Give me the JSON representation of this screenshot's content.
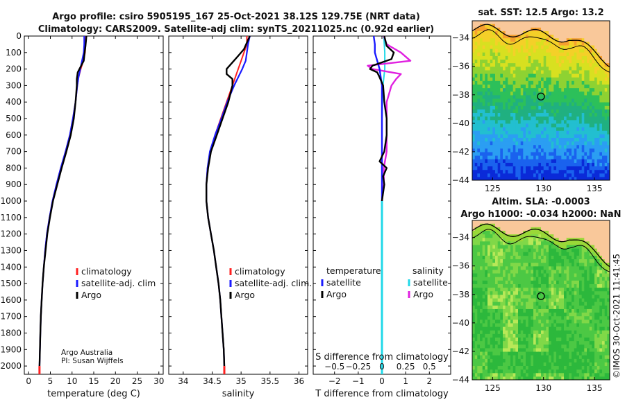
{
  "figure": {
    "title_line1": "Argo profile: csiro 5905195_167 25-Oct-2021 38.12S 129.75E (NRT data)",
    "title_line2": "Climatology: CARS2009. Satellite-adj clim: synTS_20211025.nc (0.92d earlier)",
    "credit_line1": "Argo Australia",
    "credit_line2": "PI: Susan Wijffels",
    "timestamp": "©IMOS 30-Oct-2021 11:41:45"
  },
  "colors": {
    "climatology": "#ff2020",
    "satellite": "#1a1aff",
    "argo": "#000000",
    "argo_salinity_diff": "#e020e0",
    "satellite_salinity_diff": "#20d8e8",
    "land": "#f9c89a"
  },
  "chart_data": [
    {
      "type": "line",
      "id": "temperature",
      "xlabel": "temperature (deg C)",
      "xlim": [
        -1,
        31
      ],
      "xticks": [
        0,
        5,
        10,
        15,
        20,
        25,
        30
      ],
      "ylim": [
        2050,
        0
      ],
      "yticks": [
        0,
        100,
        200,
        300,
        400,
        500,
        600,
        700,
        800,
        900,
        1000,
        1100,
        1200,
        1300,
        1400,
        1500,
        1600,
        1700,
        1800,
        1900,
        2000
      ],
      "legend": [
        "climatology",
        "satellite-adj. clim",
        "Argo"
      ],
      "series": [
        {
          "name": "climatology",
          "depth": [
            0,
            50,
            100,
            150,
            200,
            250,
            300,
            400,
            500,
            600,
            700,
            800,
            900,
            1000,
            1100,
            1200,
            1300,
            1400,
            1500,
            1600,
            1700,
            1800,
            1900,
            2000
          ],
          "values": [
            13.2,
            13.1,
            13.0,
            12.6,
            12.0,
            11.5,
            11.2,
            10.8,
            10.2,
            9.5,
            8.5,
            7.4,
            6.4,
            5.5,
            4.8,
            4.2,
            3.8,
            3.5,
            3.2,
            3.0,
            2.8,
            2.7,
            2.6,
            2.5
          ]
        },
        {
          "name": "satellite-adj. clim",
          "depth": [
            0,
            50,
            100,
            150,
            200,
            250,
            300,
            400,
            500,
            600,
            700,
            800,
            900,
            1000,
            1100,
            1200,
            1300,
            1400,
            1500,
            1600,
            1700,
            1800,
            1900,
            2000
          ],
          "values": [
            12.8,
            12.8,
            12.7,
            12.3,
            11.9,
            11.5,
            11.2,
            10.8,
            10.2,
            9.5,
            8.5,
            7.4,
            6.4,
            5.5,
            4.8,
            4.2,
            3.8,
            3.5,
            3.2,
            3.0,
            2.8,
            2.7,
            2.6,
            2.5
          ]
        },
        {
          "name": "Argo",
          "depth": [
            0,
            30,
            60,
            100,
            150,
            180,
            200,
            220,
            240,
            260,
            300,
            400,
            500,
            600,
            700,
            800,
            900,
            1000,
            1100,
            1200,
            1300,
            1400,
            1500,
            1600,
            1700,
            1800,
            1900,
            2000
          ],
          "values": [
            13.3,
            13.2,
            13.1,
            12.9,
            12.7,
            12.1,
            11.7,
            11.3,
            11.2,
            11.1,
            11.1,
            10.8,
            10.4,
            9.7,
            8.7,
            7.6,
            6.6,
            5.6,
            4.9,
            4.3,
            3.9,
            3.5,
            3.2,
            3.0,
            2.8,
            2.7,
            2.6,
            2.5
          ]
        }
      ]
    },
    {
      "type": "line",
      "id": "salinity",
      "xlabel": "salinity",
      "xlim": [
        33.75,
        36.15
      ],
      "xticks": [
        34,
        34.5,
        35,
        35.5,
        36
      ],
      "ylim": [
        2050,
        0
      ],
      "legend": [
        "climatology",
        "satellite-adj. clim.",
        "Argo"
      ],
      "series": [
        {
          "name": "climatology",
          "depth": [
            0,
            50,
            100,
            150,
            200,
            300,
            400,
            500,
            600,
            700,
            800,
            900,
            1000,
            1100,
            1200,
            1300,
            1400,
            1500,
            1600,
            1700,
            1800,
            1900,
            2000
          ],
          "values": [
            35.1,
            35.1,
            35.05,
            35.0,
            34.95,
            34.85,
            34.75,
            34.65,
            34.55,
            34.47,
            34.42,
            34.4,
            34.4,
            34.43,
            34.48,
            34.53,
            34.57,
            34.61,
            34.64,
            34.66,
            34.68,
            34.7,
            34.71
          ]
        },
        {
          "name": "satellite-adj. clim.",
          "depth": [
            0,
            50,
            100,
            150,
            200,
            300,
            400,
            500,
            600,
            700,
            800,
            900,
            1000,
            1100,
            1200,
            1300,
            1400,
            1500,
            1600,
            1700,
            1800,
            1900,
            2000
          ],
          "values": [
            35.15,
            35.12,
            35.1,
            35.08,
            35.02,
            34.88,
            34.76,
            34.66,
            34.55,
            34.46,
            34.42,
            34.4,
            34.4,
            34.43,
            34.48,
            34.53,
            34.57,
            34.61,
            34.64,
            34.66,
            34.68,
            34.7,
            34.71
          ]
        },
        {
          "name": "Argo",
          "depth": [
            0,
            40,
            80,
            120,
            160,
            200,
            230,
            260,
            300,
            400,
            500,
            600,
            700,
            800,
            900,
            1000,
            1100,
            1200,
            1300,
            1400,
            1500,
            1600,
            1700,
            1800,
            1900,
            2000
          ],
          "values": [
            35.15,
            35.1,
            35.05,
            34.95,
            34.85,
            34.75,
            34.75,
            34.85,
            34.85,
            34.78,
            34.68,
            34.58,
            34.48,
            34.43,
            34.4,
            34.4,
            34.43,
            34.48,
            34.53,
            34.57,
            34.61,
            34.64,
            34.66,
            34.68,
            34.7,
            34.71
          ]
        }
      ]
    },
    {
      "type": "line",
      "id": "difference",
      "xlabel": "T difference from climatology",
      "xlabel_top": "S difference from climatology",
      "xlim": [
        -2.9,
        2.9
      ],
      "xticks": [
        -2,
        -1,
        0,
        1,
        2
      ],
      "xticks_top": [
        -0.5,
        -0.25,
        0,
        0.25,
        0.5
      ],
      "ylim": [
        2050,
        0
      ],
      "legend_left_title": "temperature",
      "legend_right_title": "salinity",
      "legend_left": [
        "satellite",
        "Argo"
      ],
      "legend_right": [
        "satellite",
        "Argo"
      ],
      "series": [
        {
          "name": "T satellite",
          "depth": [
            0,
            50,
            100,
            150,
            200,
            300,
            400,
            600,
            800,
            1000,
            1200,
            1500,
            2000
          ],
          "values": [
            -0.35,
            -0.3,
            -0.3,
            -0.2,
            -0.1,
            0,
            0,
            0,
            0,
            0,
            0,
            0,
            0
          ]
        },
        {
          "name": "T Argo",
          "depth": [
            0,
            30,
            60,
            100,
            140,
            180,
            200,
            220,
            250,
            300,
            400,
            500,
            600,
            700,
            760,
            800,
            850,
            900,
            1000,
            1500,
            2000
          ],
          "values": [
            0.1,
            0.15,
            0.2,
            0.5,
            0.4,
            -0.4,
            -0.5,
            -0.2,
            -0.1,
            0.05,
            0.1,
            0.2,
            0.2,
            0.1,
            -0.1,
            0.2,
            0.05,
            0.1,
            0,
            0,
            0
          ]
        },
        {
          "name": "S satellite",
          "depth": [
            0,
            100,
            200,
            300,
            500,
            800,
            1000,
            1500,
            2000
          ],
          "values": [
            0.02,
            0.03,
            0.03,
            0.01,
            0,
            0,
            0,
            0,
            0
          ]
        },
        {
          "name": "S Argo",
          "depth": [
            0,
            50,
            100,
            150,
            180,
            200,
            230,
            260,
            300,
            400,
            500,
            600,
            700,
            800,
            900,
            1000,
            1500,
            2000
          ],
          "values": [
            0.02,
            0.05,
            0.2,
            0.3,
            -0.15,
            -0.1,
            0.2,
            0.15,
            0.1,
            0.05,
            0.05,
            0.05,
            0.05,
            0.02,
            0.02,
            0,
            0,
            0
          ]
        }
      ]
    },
    {
      "type": "heatmap",
      "id": "sst_map",
      "title": "sat. SST: 12.5 Argo: 13.2",
      "xlim": [
        123,
        136.5
      ],
      "ylim": [
        -44,
        -32.8
      ],
      "xticks": [
        125,
        130,
        135
      ],
      "yticks": [
        -34,
        -36,
        -38,
        -40,
        -42,
        -44
      ],
      "argo_position": [
        129.75,
        -38.12
      ]
    },
    {
      "type": "heatmap",
      "id": "sla_map",
      "title_line1": "Altim. SLA: -0.0003",
      "title_line2": "Argo h1000: -0.034 h2000: NaN",
      "xlim": [
        123,
        136.5
      ],
      "ylim": [
        -44,
        -32.8
      ],
      "xticks": [
        125,
        130,
        135
      ],
      "yticks": [
        -34,
        -36,
        -38,
        -40,
        -42,
        -44
      ],
      "argo_position": [
        129.75,
        -38.12
      ]
    }
  ]
}
